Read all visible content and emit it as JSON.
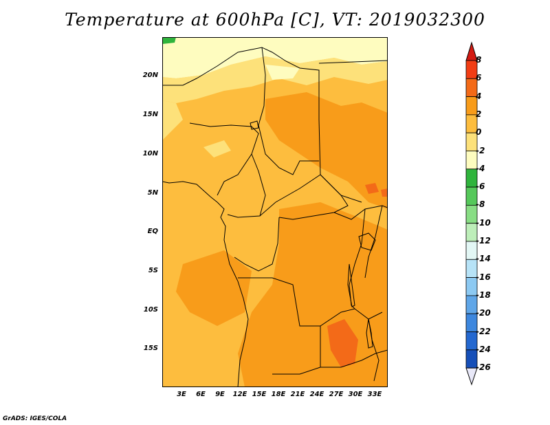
{
  "title": "Temperature at 600hPa [C], VT: 2019032300",
  "credit": "GrADS: IGES/COLA",
  "lat_ticks": [
    "20N",
    "15N",
    "10N",
    "5N",
    "EQ",
    "5S",
    "10S",
    "15S"
  ],
  "lon_ticks": [
    "3E",
    "6E",
    "9E",
    "12E",
    "15E",
    "18E",
    "21E",
    "24E",
    "27E",
    "30E",
    "33E"
  ],
  "colorbar": {
    "labels": [
      "8",
      "6",
      "4",
      "2",
      "0",
      "-2",
      "-4",
      "-6",
      "-8",
      "-10",
      "-12",
      "-14",
      "-16",
      "-18",
      "-20",
      "-22",
      "-24",
      "-26"
    ],
    "colors": [
      "#d31a12",
      "#f23d14",
      "#f36a18",
      "#f89c1a",
      "#fdbd3e",
      "#fde17a",
      "#fefcbf",
      "#2fb43c",
      "#55c85a",
      "#88dd84",
      "#bdeeb9",
      "#e3f7f5",
      "#b7e3f7",
      "#8cc9f2",
      "#5fa6e8",
      "#3d87de",
      "#2468d0",
      "#164fb8",
      "#0b3699"
    ],
    "top_color": "#d31a12",
    "bottom_color": "#0b3699"
  },
  "colors": {
    "land_base": "#fdbd3e",
    "warm": "#f89c1a",
    "hot": "#f36a18",
    "cool": "#fde17a",
    "cold": "#fefcbf",
    "green": "#2fb43c"
  }
}
